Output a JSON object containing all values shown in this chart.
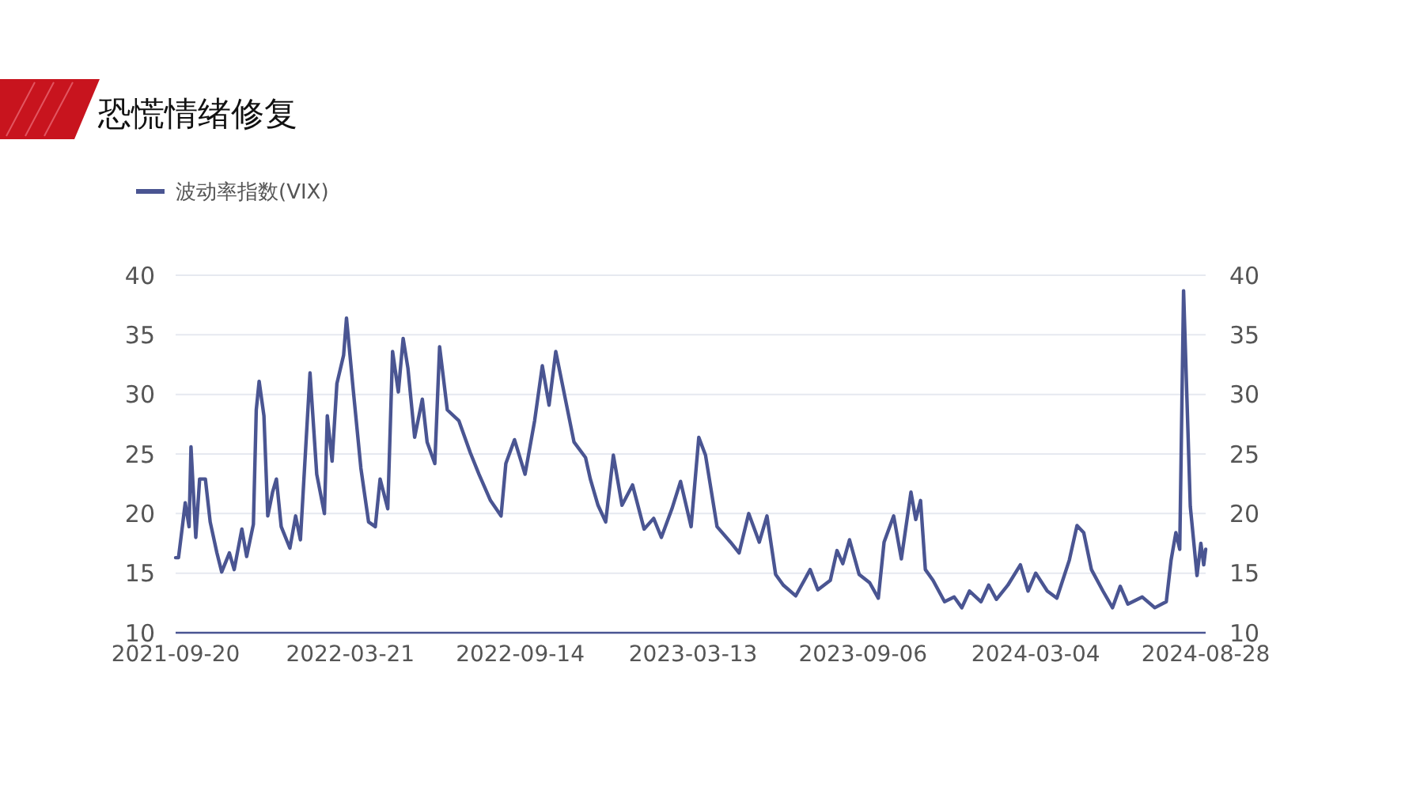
{
  "chart_data": {
    "type": "line",
    "title": "恐慌情绪修复",
    "x": [
      "2021-09-20",
      "2021-09-23",
      "2021-09-27",
      "2021-09-30",
      "2021-10-04",
      "2021-10-06",
      "2021-10-11",
      "2021-10-15",
      "2021-10-21",
      "2021-10-26",
      "2021-11-02",
      "2021-11-07",
      "2021-11-15",
      "2021-11-20",
      "2021-11-28",
      "2021-12-03",
      "2021-12-10",
      "2021-12-13",
      "2021-12-16",
      "2021-12-21",
      "2021-12-25",
      "2021-12-30",
      "2022-01-03",
      "2022-01-08",
      "2022-01-17",
      "2022-01-23",
      "2022-01-28",
      "2022-02-07",
      "2022-02-14",
      "2022-02-22",
      "2022-02-25",
      "2022-03-02",
      "2022-03-07",
      "2022-03-14",
      "2022-03-17",
      "2022-03-24",
      "2022-04-01",
      "2022-04-09",
      "2022-04-16",
      "2022-04-21",
      "2022-04-29",
      "2022-05-04",
      "2022-05-10",
      "2022-05-15",
      "2022-05-20",
      "2022-05-27",
      "2022-06-04",
      "2022-06-09",
      "2022-06-17",
      "2022-06-22",
      "2022-06-30",
      "2022-07-12",
      "2022-07-24",
      "2022-08-02",
      "2022-08-14",
      "2022-08-25",
      "2022-08-30",
      "2022-09-08",
      "2022-09-19",
      "2022-09-29",
      "2022-10-07",
      "2022-10-14",
      "2022-10-21",
      "2022-10-30",
      "2022-11-09",
      "2022-11-21",
      "2022-11-26",
      "2022-12-04",
      "2022-12-12",
      "2022-12-20",
      "2022-12-29",
      "2023-01-09",
      "2023-01-21",
      "2023-01-31",
      "2023-02-08",
      "2023-02-19",
      "2023-02-28",
      "2023-03-11",
      "2023-03-19",
      "2023-03-26",
      "2023-04-07",
      "2023-04-21",
      "2023-04-30",
      "2023-05-10",
      "2023-05-21",
      "2023-05-29",
      "2023-06-07",
      "2023-06-15",
      "2023-06-28",
      "2023-07-13",
      "2023-07-21",
      "2023-08-03",
      "2023-08-10",
      "2023-08-16",
      "2023-08-23",
      "2023-09-02",
      "2023-09-13",
      "2023-09-22",
      "2023-09-28",
      "2023-10-08",
      "2023-10-16",
      "2023-10-26",
      "2023-10-31",
      "2023-11-05",
      "2023-11-10",
      "2023-11-18",
      "2023-11-30",
      "2023-12-10",
      "2023-12-18",
      "2023-12-26",
      "2024-01-07",
      "2024-01-15",
      "2024-01-23",
      "2024-02-04",
      "2024-02-17",
      "2024-02-25",
      "2024-03-04",
      "2024-03-16",
      "2024-03-26",
      "2024-04-08",
      "2024-04-16",
      "2024-04-23",
      "2024-05-01",
      "2024-05-13",
      "2024-05-23",
      "2024-05-31",
      "2024-06-08",
      "2024-06-23",
      "2024-07-06",
      "2024-07-18",
      "2024-07-23",
      "2024-07-28",
      "2024-08-01",
      "2024-08-05",
      "2024-08-12",
      "2024-08-19",
      "2024-08-23",
      "2024-08-26",
      "2024-08-28"
    ],
    "series": [
      {
        "name": "波动率指数(VIX)",
        "color": "#4a5592",
        "values": [
          16.3,
          16.3,
          18.9,
          20.9,
          18.9,
          25.6,
          18.0,
          22.9,
          22.9,
          19.3,
          16.7,
          15.1,
          16.7,
          15.3,
          18.7,
          16.4,
          19.1,
          28.7,
          31.1,
          28.2,
          19.8,
          21.8,
          22.9,
          18.9,
          17.1,
          19.8,
          17.8,
          31.8,
          23.3,
          20.0,
          28.2,
          24.4,
          30.9,
          33.3,
          36.4,
          30.4,
          23.8,
          19.3,
          18.9,
          22.9,
          20.4,
          33.6,
          30.2,
          34.7,
          32.2,
          26.4,
          29.6,
          26.0,
          24.2,
          34.0,
          28.7,
          27.8,
          25.1,
          23.3,
          21.1,
          19.8,
          24.2,
          26.2,
          23.3,
          27.8,
          32.4,
          29.1,
          33.6,
          30.0,
          26.0,
          24.7,
          22.9,
          20.7,
          19.3,
          24.9,
          20.7,
          22.4,
          18.7,
          19.6,
          18.0,
          20.4,
          22.7,
          18.9,
          26.4,
          24.9,
          18.9,
          17.6,
          16.7,
          20.0,
          17.6,
          19.8,
          14.9,
          14.0,
          13.1,
          15.3,
          13.6,
          14.4,
          16.9,
          15.8,
          17.8,
          14.9,
          14.2,
          12.9,
          17.6,
          19.8,
          16.2,
          21.8,
          19.5,
          21.1,
          15.3,
          14.4,
          12.6,
          13.0,
          12.1,
          13.5,
          12.6,
          14.0,
          12.8,
          14.0,
          15.7,
          13.5,
          15.0,
          13.5,
          12.9,
          16.1,
          19.0,
          18.4,
          15.3,
          13.5,
          12.1,
          13.9,
          12.4,
          13.0,
          12.1,
          12.6,
          16.1,
          18.4,
          17.0,
          38.7,
          20.6,
          14.8,
          17.5,
          15.7,
          17.0
        ]
      }
    ],
    "xlim": [
      "2021-09-20",
      "2024-08-28"
    ],
    "xticks": [
      "2021-09-20",
      "2022-03-21",
      "2022-09-14",
      "2023-03-13",
      "2023-09-06",
      "2024-03-04",
      "2024-08-28"
    ],
    "ylim": [
      10,
      40
    ],
    "yticks": [
      10,
      15,
      20,
      25,
      30,
      35,
      40
    ],
    "y2lim": [
      10,
      40
    ],
    "y2ticks": [
      10,
      15,
      20,
      25,
      30,
      35,
      40
    ],
    "grid": "y",
    "legend": "top left",
    "line_style": "solid",
    "marker": "none"
  }
}
